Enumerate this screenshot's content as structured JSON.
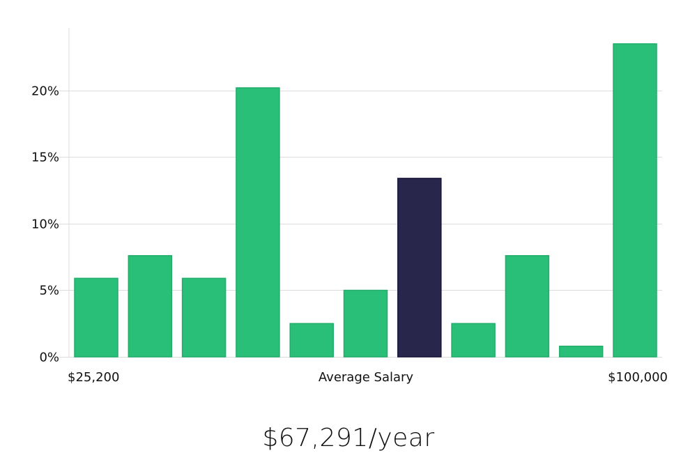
{
  "chart_data": {
    "type": "bar",
    "categories": [
      "1",
      "2",
      "3",
      "4",
      "5",
      "6",
      "7",
      "8",
      "9",
      "10",
      "11"
    ],
    "values": [
      5.9,
      7.6,
      5.9,
      20.2,
      2.5,
      5.0,
      13.4,
      2.5,
      7.6,
      0.8,
      23.5
    ],
    "highlight_index": 6,
    "ylim": [
      0,
      24.7
    ],
    "yticks": [
      0,
      5,
      10,
      15,
      20
    ],
    "ytick_labels": [
      "0%",
      "5%",
      "10%",
      "15%",
      "20%"
    ],
    "x_left_label": "$25,200",
    "x_center_label": "Average Salary",
    "x_right_label": "$100,000",
    "grid": true,
    "colors": {
      "bar": "#29bf78",
      "bar_stroke": "#22ad6b",
      "highlight": "#28264a",
      "highlight_stroke": "#16143a"
    }
  },
  "headline": "$67,291/year"
}
